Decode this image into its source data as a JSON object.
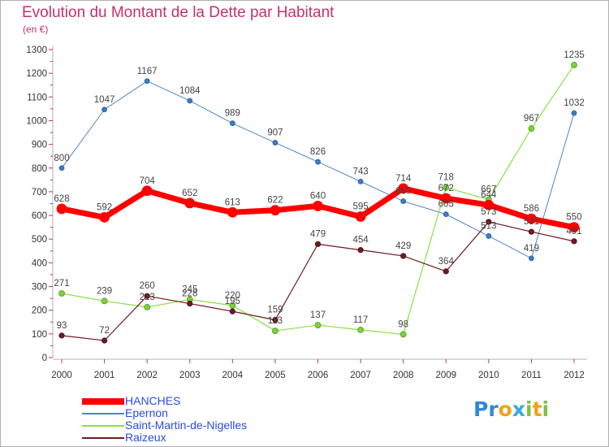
{
  "chart_data": {
    "type": "line",
    "title": "Evolution du Montant de la Dette par Habitant",
    "subtitle": "(en €)",
    "x": [
      "2000",
      "2001",
      "2002",
      "2003",
      "2004",
      "2005",
      "2006",
      "2007",
      "2008",
      "2009",
      "2010",
      "2011",
      "2012"
    ],
    "ylim": [
      0,
      1300
    ],
    "y_ticks": [
      0,
      100,
      200,
      300,
      400,
      500,
      600,
      700,
      800,
      900,
      1000,
      1100,
      1200,
      1300
    ],
    "grid": false,
    "legend_position": "bottom-left",
    "series": [
      {
        "name": "HANCHES",
        "color": "#ff0000",
        "values": [
          628,
          592,
          704,
          652,
          613,
          622,
          640,
          595,
          714,
          672,
          644,
          586,
          550
        ],
        "labels": [
          "628",
          "592",
          "704",
          "652",
          "613",
          "622",
          "640",
          "595",
          "714",
          "672",
          "644",
          "586",
          "550"
        ]
      },
      {
        "name": "Epernon",
        "color": "#4f86c2",
        "values": [
          800,
          1047,
          1167,
          1084,
          989,
          907,
          826,
          743,
          660,
          605,
          513,
          419,
          1032
        ],
        "labels": [
          "800",
          "1047",
          "1167",
          "1084",
          "989",
          "907",
          "826",
          "743",
          "660",
          "605",
          "513",
          "419",
          "1032"
        ]
      },
      {
        "name": "Saint-Martin-de-Nigelles",
        "color": "#88e046",
        "values": [
          271,
          239,
          213,
          245,
          220,
          113,
          137,
          117,
          98,
          718,
          667,
          967,
          1235
        ],
        "labels": [
          "271",
          "239",
          "213",
          "245",
          "220",
          "113",
          "137",
          "117",
          "98",
          "718",
          "667",
          "967",
          "1235"
        ]
      },
      {
        "name": "Raizeux",
        "color": "#6e1a22",
        "values": [
          93,
          72,
          260,
          228,
          195,
          159,
          479,
          454,
          429,
          364,
          573,
          531,
          491
        ],
        "labels": [
          "93",
          "72",
          "260",
          "228",
          "195",
          "159",
          "479",
          "454",
          "429",
          "364",
          "573",
          "531",
          "491"
        ]
      }
    ]
  },
  "brand": {
    "text": "Proxiti",
    "letters": [
      {
        "ch": "P",
        "color": "#2f87d8"
      },
      {
        "ch": "r",
        "color": "#2f87d8"
      },
      {
        "ch": "o",
        "color": "#f2a216"
      },
      {
        "ch": "x",
        "color": "#3aa7e0"
      },
      {
        "ch": "i",
        "color": "#7cc242"
      },
      {
        "ch": "t",
        "color": "#f2a216"
      },
      {
        "ch": "i",
        "color": "#7cc242"
      }
    ]
  }
}
